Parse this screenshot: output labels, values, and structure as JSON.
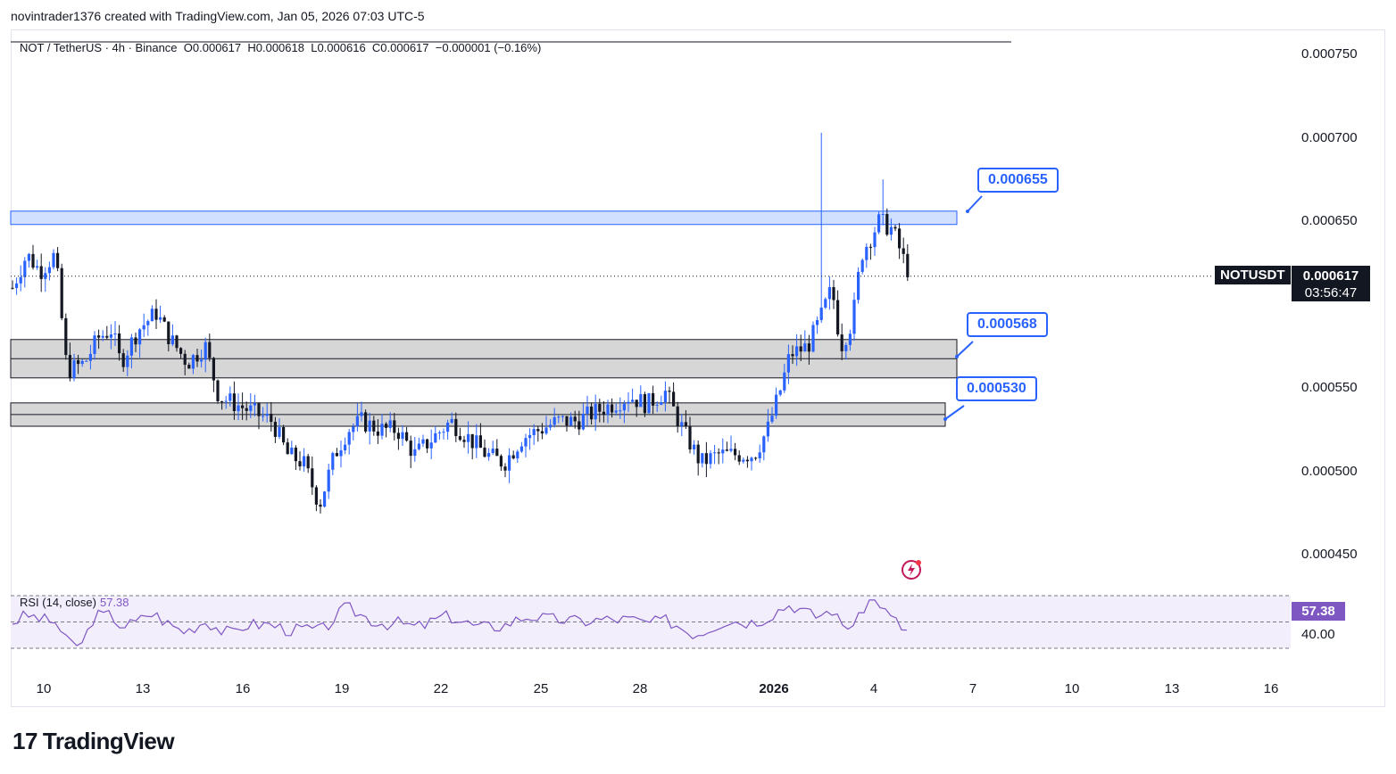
{
  "header": {
    "text": "novintrader1376 created with TradingView.com, Jan 05, 2026 07:03 UTC-5"
  },
  "legend": {
    "symbol": "NOT / TetherUS · 4h · Binance",
    "open": "O0.000617",
    "high": "H0.000618",
    "low": "L0.000616",
    "close": "C0.000617",
    "change": "−0.000001 (−0.16%)"
  },
  "rsi": {
    "label": "RSI (14, close)",
    "value": "57.38",
    "level_label": "40.00"
  },
  "price_scale": {
    "ticks": [
      "0.000750",
      "0.000700",
      "0.000650",
      "0.000500",
      "0.000550",
      "0.000450"
    ]
  },
  "price_ticks_ordered": [
    {
      "value": 0.00075,
      "label": "0.000750"
    },
    {
      "value": 0.0007,
      "label": "0.000700"
    },
    {
      "value": 0.00065,
      "label": "0.000650"
    },
    {
      "value": 0.00055,
      "label": "0.000550"
    },
    {
      "value": 0.0005,
      "label": "0.000500"
    },
    {
      "value": 0.00045,
      "label": "0.000450"
    }
  ],
  "last_price": {
    "symbol": "NOTUSDT",
    "price": "0.000617",
    "countdown": "03:56:47"
  },
  "callouts": [
    {
      "label": "0.000655"
    },
    {
      "label": "0.000568"
    },
    {
      "label": "0.000530"
    }
  ],
  "logo": {
    "text": "TradingView"
  },
  "colors": {
    "up": "#2962ff",
    "down": "#131722",
    "zone_blue": "#d1e0ff",
    "zone_gray": "#d6d6d6",
    "rsi": "#7e57c2"
  },
  "chart_data": {
    "type": "candlestick",
    "title": "NOT / TetherUS · 4h · Binance",
    "x_ticks": [
      "10",
      "13",
      "16",
      "19",
      "22",
      "25",
      "28",
      "2026",
      "4",
      "7",
      "10",
      "13",
      "16"
    ],
    "y_range": [
      0.00043,
      0.00076
    ],
    "zones": [
      {
        "label": "0.000655",
        "low": 0.000648,
        "high": 0.000656
      },
      {
        "label": "0.000568",
        "low": 0.000556,
        "high": 0.000579
      },
      {
        "label": "0.000530",
        "low": 0.000527,
        "high": 0.000541
      }
    ],
    "last_close": 0.000617,
    "rsi": {
      "value": 57.38,
      "levels": [
        70,
        50,
        30
      ]
    }
  }
}
